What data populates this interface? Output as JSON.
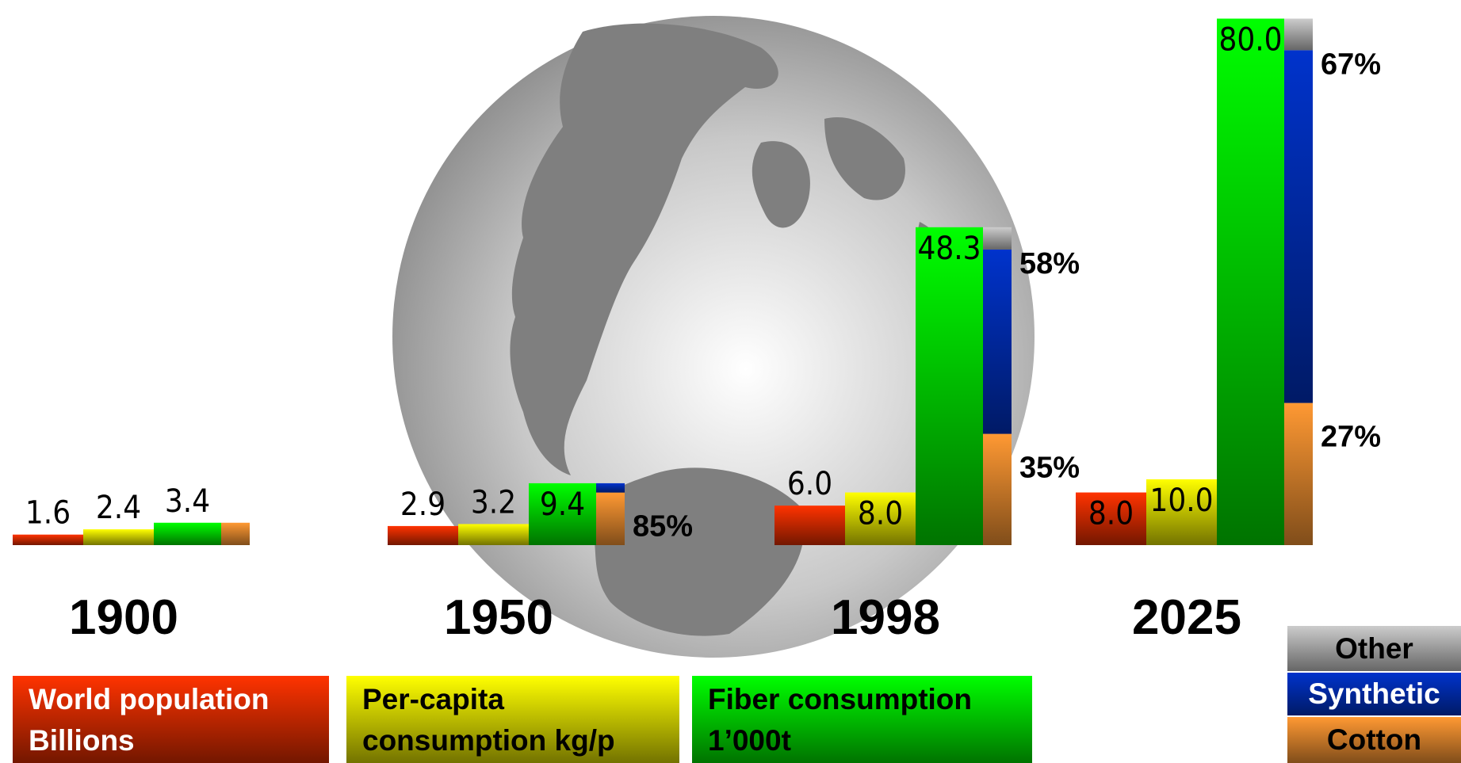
{
  "chart_data": {
    "type": "bar",
    "categories": [
      "1900",
      "1950",
      "1998",
      "2025"
    ],
    "ylim": [
      0,
      80
    ],
    "series": [
      {
        "name": "World population Billions",
        "color": "#ff3300",
        "values": [
          1.6,
          2.9,
          6.0,
          8.0
        ],
        "value_labels": [
          "1.6",
          "2.9",
          "6.0",
          "8.0"
        ]
      },
      {
        "name": "Per-capita consumption kg/p",
        "color": "#ffff00",
        "values": [
          2.4,
          3.2,
          8.0,
          10.0
        ],
        "value_labels": [
          "2.4",
          "3.2",
          "8.0",
          "10.0"
        ]
      },
      {
        "name": "Fiber consumption 1’000t",
        "color": "#00ff00",
        "values": [
          3.4,
          9.4,
          48.3,
          80.0
        ],
        "value_labels": [
          "3.4",
          "9.4",
          "48.3",
          "80.0"
        ]
      }
    ],
    "stack": {
      "series": [
        {
          "name": "Cotton",
          "color": "#ff9933",
          "values": [
            100,
            85,
            35,
            27
          ],
          "value_labels": [
            null,
            "85%",
            "35%",
            "27%"
          ]
        },
        {
          "name": "Synthetic",
          "color": "#0033cc",
          "values": [
            0,
            15,
            58,
            67
          ],
          "value_labels": [
            null,
            null,
            "58%",
            "67%"
          ]
        },
        {
          "name": "Other",
          "color": "#cccccc",
          "values": [
            0,
            0,
            7,
            6
          ],
          "value_labels": [
            null,
            null,
            null,
            null
          ]
        }
      ]
    }
  }
}
